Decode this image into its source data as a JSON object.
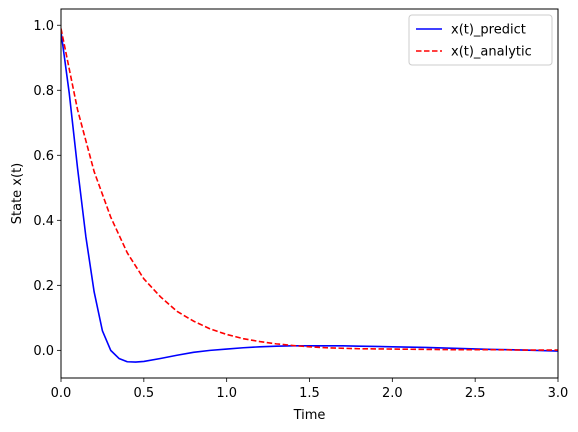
{
  "chart_data": {
    "type": "line",
    "title": "",
    "xlabel": "Time",
    "ylabel": "State x(t)",
    "xlim": [
      0,
      3.0
    ],
    "ylim": [
      -0.085,
      1.05
    ],
    "xticks": [
      "0.0",
      "0.5",
      "1.0",
      "1.5",
      "2.0",
      "2.5",
      "3.0"
    ],
    "yticks": [
      "0.0",
      "0.2",
      "0.4",
      "0.6",
      "0.8",
      "1.0"
    ],
    "grid": false,
    "legend_position": "top-right",
    "series": [
      {
        "name": "x(t)_predict",
        "color": "#0000ff",
        "style": "solid",
        "x": [
          0,
          0.05,
          0.1,
          0.15,
          0.2,
          0.25,
          0.3,
          0.35,
          0.4,
          0.45,
          0.5,
          0.6,
          0.7,
          0.8,
          0.9,
          1.0,
          1.1,
          1.2,
          1.3,
          1.4,
          1.5,
          1.6,
          1.7,
          1.8,
          1.9,
          2.0,
          2.2,
          2.4,
          2.6,
          2.8,
          3.0
        ],
        "y": [
          0.98,
          0.79,
          0.56,
          0.35,
          0.18,
          0.06,
          0.0,
          -0.025,
          -0.035,
          -0.036,
          -0.034,
          -0.025,
          -0.015,
          -0.006,
          0.0,
          0.004,
          0.008,
          0.011,
          0.013,
          0.014,
          0.014,
          0.014,
          0.014,
          0.013,
          0.012,
          0.011,
          0.009,
          0.006,
          0.003,
          0.001,
          -0.002
        ]
      },
      {
        "name": "x(t)_analytic",
        "color": "#ff0000",
        "style": "dashed",
        "x": [
          0,
          0.1,
          0.2,
          0.3,
          0.4,
          0.5,
          0.6,
          0.7,
          0.8,
          0.9,
          1.0,
          1.1,
          1.2,
          1.3,
          1.4,
          1.5,
          1.6,
          1.8,
          2.0,
          2.2,
          2.4,
          2.6,
          2.8,
          3.0
        ],
        "y": [
          0.99,
          0.74,
          0.55,
          0.41,
          0.3,
          0.22,
          0.165,
          0.12,
          0.09,
          0.066,
          0.049,
          0.036,
          0.027,
          0.02,
          0.015,
          0.011,
          0.008,
          0.005,
          0.004,
          0.003,
          0.002,
          0.002,
          0.001,
          0.001
        ]
      }
    ]
  }
}
